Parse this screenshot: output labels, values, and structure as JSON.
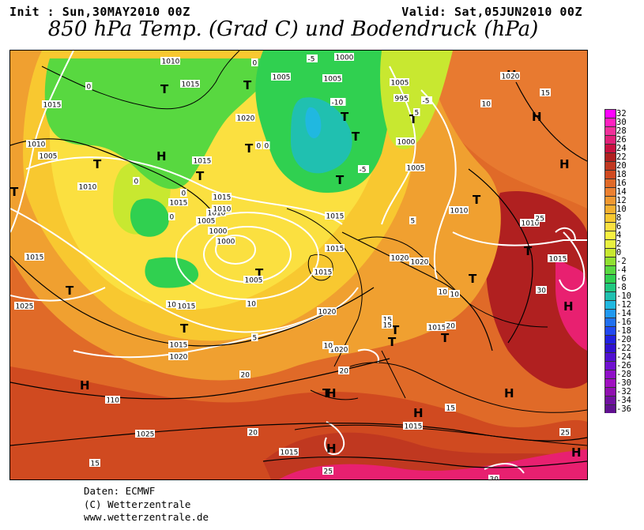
{
  "header": {
    "init": "Init : Sun,30MAY2010 00Z",
    "valid": "Valid: Sat,05JUN2010 00Z",
    "title": "850 hPa Temp. (Grad C) und Bodendruck (hPa)"
  },
  "footer": {
    "source": "Daten: ECMWF",
    "copyright": "(C) Wetterzentrale",
    "url": "www.wetterzentrale.de"
  },
  "scale": {
    "labels": [
      "32",
      "30",
      "28",
      "26",
      "24",
      "22",
      "20",
      "18",
      "16",
      "14",
      "12",
      "10",
      "8",
      "6",
      "4",
      "2",
      "0",
      "-2",
      "-4",
      "-6",
      "-8",
      "-10",
      "-12",
      "-14",
      "-16",
      "-18",
      "-20",
      "-22",
      "-24",
      "-26",
      "-28",
      "-30",
      "-32",
      "-34",
      "-36"
    ],
    "colors": [
      "#ff00ff",
      "#ff20c0",
      "#f0309a",
      "#e02078",
      "#c81040",
      "#b02020",
      "#c03820",
      "#d04a20",
      "#e06a28",
      "#ec8030",
      "#f09830",
      "#f4b030",
      "#f8c830",
      "#fbe040",
      "#f8f040",
      "#e8f040",
      "#c8e830",
      "#90e030",
      "#58d840",
      "#30d050",
      "#20c880",
      "#20c0b0",
      "#20b8e0",
      "#2098f0",
      "#2070f0",
      "#2048f0",
      "#2020e0",
      "#3010d0",
      "#5010d0",
      "#7010d0",
      "#9010c8",
      "#a010c0",
      "#9010b0",
      "#7010a0",
      "#601090"
    ]
  },
  "map": {
    "high_markers": [
      "H",
      "H",
      "H",
      "H",
      "H",
      "H",
      "H",
      "H",
      "H",
      "H",
      "H"
    ],
    "low_markers": [
      "T",
      "T",
      "T",
      "T",
      "T",
      "T",
      "T",
      "T",
      "T",
      "T",
      "T",
      "T",
      "T",
      "T",
      "T",
      "T",
      "T",
      "T",
      "T",
      "T"
    ],
    "isobar_labels": [
      "1010",
      "1015",
      "1005",
      "1005",
      "1000",
      "1005",
      "1005",
      "995",
      "1000",
      "1020",
      "1020",
      "1015",
      "1010",
      "1005",
      "1005",
      "1000",
      "1010",
      "1015",
      "1010",
      "1015",
      "1010",
      "1025",
      "1015",
      "1015",
      "1010",
      "1010",
      "1015",
      "1020",
      "1020",
      "1015",
      "1020",
      "1025",
      "1020",
      "1015",
      "1015",
      "1020",
      "1015",
      "1015",
      "1010",
      "1015",
      "1015",
      "1015",
      "1000",
      "1005"
    ],
    "temp_labels": [
      "0",
      "-5",
      "-5",
      "-10",
      "0",
      "-5",
      "0",
      "5",
      "5",
      "10",
      "0",
      "0",
      "0",
      "0",
      "15",
      "20",
      "10",
      "20",
      "25",
      "25",
      "30",
      "15",
      "10",
      "15",
      "15",
      "20",
      "15",
      "10",
      "25",
      "10",
      "30",
      "10",
      "15",
      "20",
      "5"
    ]
  }
}
